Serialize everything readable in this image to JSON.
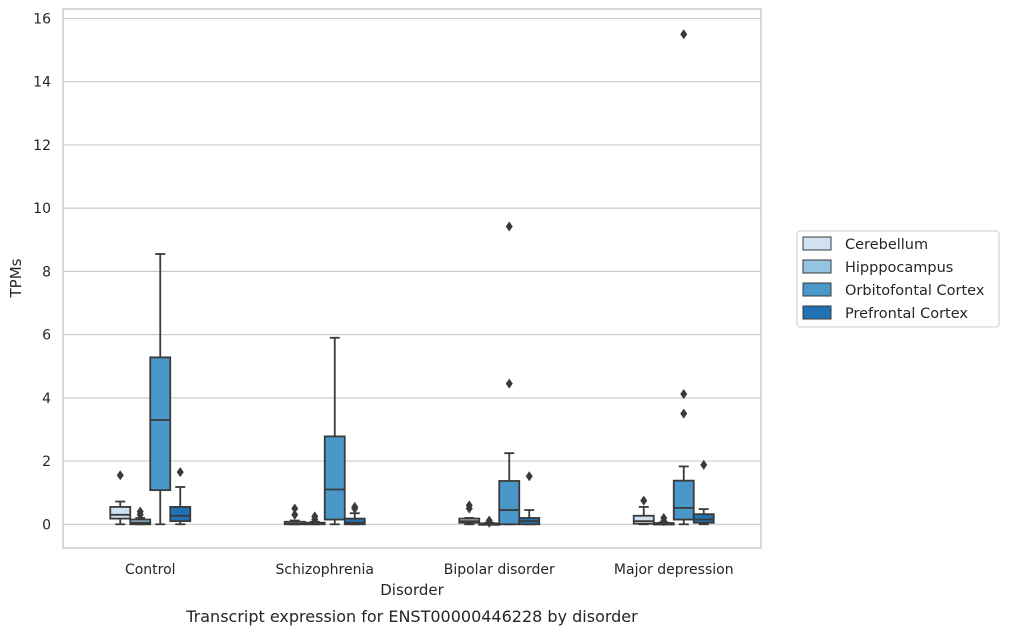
{
  "chart_data": {
    "type": "boxplot",
    "caption": "Transcript expression for ENST00000446228 by disorder",
    "xlabel": "Disorder",
    "ylabel": "TPMs",
    "ylim": [
      -0.75,
      16.3
    ],
    "yticks": [
      "0",
      "2",
      "4",
      "6",
      "8",
      "10",
      "12",
      "14",
      "16"
    ],
    "grid": "horizontal",
    "legend_position": "right-outside",
    "categories": [
      "Control",
      "Schizophrenia",
      "Bipolar disorder",
      "Major depression"
    ],
    "series": [
      {
        "name": "Cerebellum",
        "color": "#d0e1f2",
        "boxes": [
          {
            "whislo": 0.0,
            "q1": 0.18,
            "med": 0.3,
            "q3": 0.55,
            "whishi": 0.72,
            "fliers": [
              1.55
            ]
          },
          {
            "whislo": 0.0,
            "q1": 0.0,
            "med": 0.02,
            "q3": 0.08,
            "whishi": 0.12,
            "fliers": [
              0.3,
              0.5
            ]
          },
          {
            "whislo": 0.0,
            "q1": 0.05,
            "med": 0.1,
            "q3": 0.18,
            "whishi": 0.2,
            "fliers": [
              0.5,
              0.6
            ]
          },
          {
            "whislo": 0.0,
            "q1": 0.02,
            "med": 0.1,
            "q3": 0.27,
            "whishi": 0.55,
            "fliers": [
              0.75
            ]
          }
        ]
      },
      {
        "name": "Hipppocampus",
        "color": "#94c4df",
        "boxes": [
          {
            "whislo": 0.0,
            "q1": 0.0,
            "med": 0.05,
            "q3": 0.15,
            "whishi": 0.2,
            "fliers": [
              0.3,
              0.4
            ]
          },
          {
            "whislo": 0.0,
            "q1": 0.0,
            "med": 0.02,
            "q3": 0.05,
            "whishi": 0.08,
            "fliers": [
              0.15,
              0.25
            ]
          },
          {
            "whislo": 0.0,
            "q1": 0.0,
            "med": 0.01,
            "q3": 0.03,
            "whishi": 0.05,
            "fliers": [
              0.05,
              0.12
            ]
          },
          {
            "whislo": 0.0,
            "q1": 0.0,
            "med": 0.01,
            "q3": 0.04,
            "whishi": 0.06,
            "fliers": [
              0.1,
              0.2
            ]
          }
        ]
      },
      {
        "name": "Orbitofontal Cortex",
        "color": "#4a98c9",
        "boxes": [
          {
            "whislo": 0.0,
            "q1": 1.08,
            "med": 3.3,
            "q3": 5.28,
            "whishi": 8.55,
            "fliers": []
          },
          {
            "whislo": 0.0,
            "q1": 0.15,
            "med": 1.1,
            "q3": 2.78,
            "whishi": 5.9,
            "fliers": []
          },
          {
            "whislo": 0.0,
            "q1": 0.0,
            "med": 0.45,
            "q3": 1.37,
            "whishi": 2.25,
            "fliers": [
              4.45,
              9.42
            ]
          },
          {
            "whislo": 0.0,
            "q1": 0.15,
            "med": 0.52,
            "q3": 1.38,
            "whishi": 1.83,
            "fliers": [
              3.5,
              4.12,
              15.5
            ]
          }
        ]
      },
      {
        "name": "Prefrontal Cortex",
        "color": "#2171b5",
        "boxes": [
          {
            "whislo": 0.0,
            "q1": 0.1,
            "med": 0.27,
            "q3": 0.55,
            "whishi": 1.18,
            "fliers": [
              1.65
            ]
          },
          {
            "whislo": 0.0,
            "q1": 0.0,
            "med": 0.05,
            "q3": 0.18,
            "whishi": 0.35,
            "fliers": [
              0.5,
              0.55
            ]
          },
          {
            "whislo": 0.0,
            "q1": 0.0,
            "med": 0.1,
            "q3": 0.2,
            "whishi": 0.45,
            "fliers": [
              1.52
            ]
          },
          {
            "whislo": 0.0,
            "q1": 0.05,
            "med": 0.15,
            "q3": 0.32,
            "whishi": 0.48,
            "fliers": [
              1.88
            ]
          }
        ]
      }
    ]
  }
}
